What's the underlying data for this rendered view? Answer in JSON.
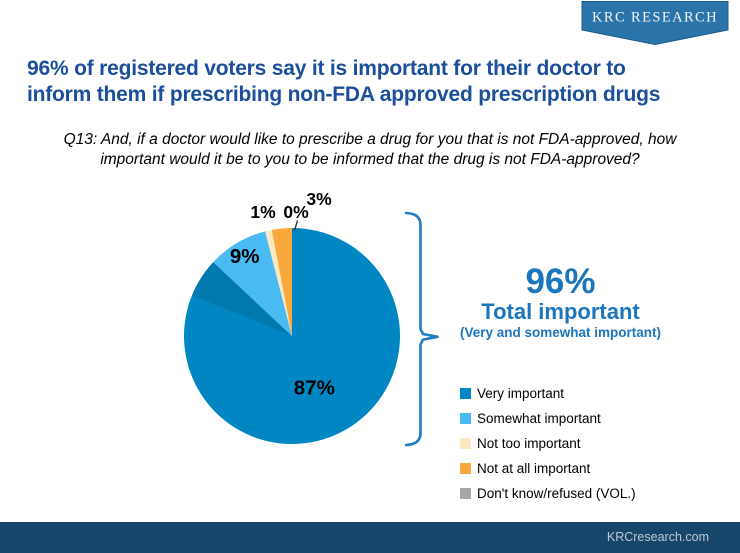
{
  "logo": {
    "text": "KRC RESEARCH"
  },
  "title": {
    "line1": "96% of registered voters say it is important for their doctor to",
    "line2": "inform them if prescribing non-FDA approved prescription drugs"
  },
  "question": {
    "line1": "Q13: And, if a doctor would like to prescribe a drug for you that is not FDA-approved, how",
    "line2": "important would it be to you to be informed that the drug is not FDA-approved?"
  },
  "callout": {
    "value": "96%",
    "label": "Total important",
    "sublabel": "(Very and somewhat important)"
  },
  "footer": {
    "url": "KRCresearch.com"
  },
  "theme": {
    "title_blue": "#1B4E9B",
    "accent_blue": "#1B76BE",
    "bracket_blue": "#1E7DC2",
    "footer_navy": "#16476B",
    "footer_text": "#BFC9D2",
    "logo_banner_blue": "#2B74A9",
    "logo_banner_border": "#1E5B85"
  },
  "chart_data": {
    "type": "pie",
    "title": "",
    "start_angle_deg": 0,
    "direction": "clockwise",
    "legend_position": "right",
    "slices": [
      {
        "label": "Very important",
        "value": 87,
        "pct_label": "87%",
        "color": "#0087C3",
        "label_placement": "inside"
      },
      {
        "label": "Somewhat important",
        "value": 9,
        "pct_label": "9%",
        "color": "#4ABAF3",
        "label_placement": "inside"
      },
      {
        "label": "Not too important",
        "value": 1,
        "pct_label": "1%",
        "color": "#FCE8C0",
        "label_placement": "outside"
      },
      {
        "label": "Not at all important",
        "value": 3,
        "pct_label": "3%",
        "color": "#F9A83C",
        "label_placement": "outside"
      },
      {
        "label": "Don't know/refused (VOL.)",
        "value": 0,
        "pct_label": "0%",
        "color": "#A6A6A6",
        "label_placement": "outside"
      }
    ]
  }
}
